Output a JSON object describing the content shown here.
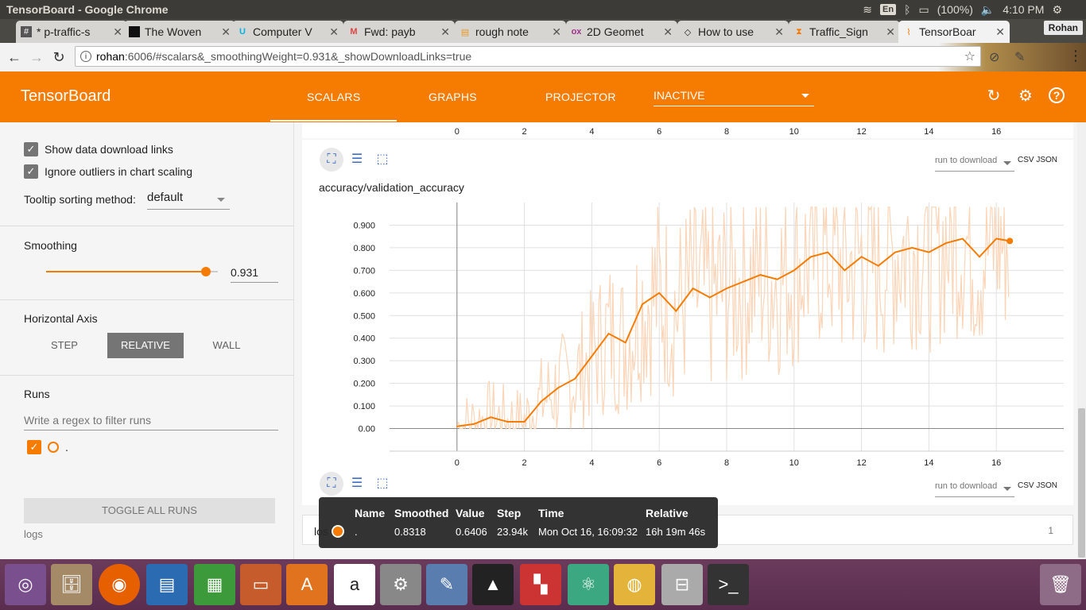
{
  "os": {
    "window_title": "TensorBoard - Google Chrome",
    "keyboard": "En",
    "battery": "(100%)",
    "clock": "4:10 PM",
    "user": "Rohan"
  },
  "browser": {
    "tabs": [
      {
        "label": "* p-traffic-s",
        "icon": "hash-icon"
      },
      {
        "label": "The Woven",
        "icon": "woven-icon"
      },
      {
        "label": "Computer V",
        "icon": "udacity-icon"
      },
      {
        "label": "Fwd: payb",
        "icon": "gmail-icon"
      },
      {
        "label": "rough note",
        "icon": "doc-icon"
      },
      {
        "label": "2D Geomet",
        "icon": "ox-icon"
      },
      {
        "label": "How to use",
        "icon": "diamond-icon"
      },
      {
        "label": "Traffic_Sign",
        "icon": "hourglass-icon"
      },
      {
        "label": "TensorBoar",
        "icon": "tensorboard-icon"
      }
    ],
    "profile": "Rohan",
    "url_host": "rohan",
    "url_rest": ":6006/#scalars&_smoothingWeight=0.931&_showDownloadLinks=true"
  },
  "header": {
    "brand": "TensorBoard",
    "tabs": [
      "SCALARS",
      "GRAPHS",
      "PROJECTOR"
    ],
    "inactive_label": "INACTIVE"
  },
  "sidebar": {
    "show_download": "Show data download links",
    "ignore_outliers": "Ignore outliers in chart scaling",
    "tooltip_sorting_label": "Tooltip sorting method:",
    "tooltip_sorting_value": "default",
    "smoothing_label": "Smoothing",
    "smoothing_value": "0.931",
    "smoothing_fraction": 0.931,
    "horizontal_axis_label": "Horizontal Axis",
    "axis_options": [
      "STEP",
      "RELATIVE",
      "WALL"
    ],
    "runs_label": "Runs",
    "regex_placeholder": "Write a regex to filter runs",
    "run_name": ".",
    "toggle_all": "TOGGLE ALL RUNS",
    "logs": "logs"
  },
  "main": {
    "download_placeholder": "run to download",
    "csv": "CSV",
    "json": "JSON",
    "prev_card_x_ticks": [
      "0",
      "2",
      "4",
      "6",
      "8",
      "10",
      "12",
      "14",
      "16"
    ],
    "next_card_title": "los",
    "next_card_count": "1"
  },
  "chart_data": {
    "type": "line",
    "title": "accuracy/validation_accuracy",
    "xlabel": "",
    "ylabel": "",
    "xlim": [
      -2,
      18
    ],
    "ylim": [
      -0.1,
      1.0
    ],
    "x_ticks": [
      0,
      2,
      4,
      6,
      8,
      10,
      12,
      14,
      16
    ],
    "x_tick_labels": [
      "0",
      "2",
      "4",
      "6",
      "8",
      "10",
      "12",
      "14",
      "16"
    ],
    "y_ticks": [
      0,
      0.1,
      0.2,
      0.3,
      0.4,
      0.5,
      0.6,
      0.7,
      0.8,
      0.9
    ],
    "y_tick_labels": [
      "0.00",
      "0.100",
      "0.200",
      "0.300",
      "0.400",
      "0.500",
      "0.600",
      "0.700",
      "0.800",
      "0.900"
    ],
    "grid": true,
    "series": [
      {
        "x": [
          0,
          0.5,
          1,
          1.5,
          2,
          2.5,
          3,
          3.5,
          4,
          4.5,
          5,
          5.5,
          6,
          6.5,
          7,
          7.5,
          8,
          8.5,
          9,
          9.5,
          10,
          10.5,
          11,
          11.5,
          12,
          12.5,
          13,
          13.5,
          14,
          14.5,
          15,
          15.5,
          16,
          16.4
        ],
        "values": [
          0.01,
          0.02,
          0.05,
          0.03,
          0.03,
          0.12,
          0.18,
          0.22,
          0.32,
          0.42,
          0.38,
          0.55,
          0.6,
          0.52,
          0.62,
          0.58,
          0.62,
          0.65,
          0.68,
          0.66,
          0.7,
          0.76,
          0.78,
          0.7,
          0.76,
          0.72,
          0.78,
          0.8,
          0.78,
          0.82,
          0.84,
          0.76,
          0.84,
          0.83
        ],
        "color": "#f57c00"
      }
    ],
    "raw_color": "#fcd5b8"
  },
  "tooltip": {
    "headers": [
      "Name",
      "Smoothed",
      "Value",
      "Step",
      "Time",
      "Relative"
    ],
    "row": [
      ".",
      "0.8318",
      "0.6406",
      "23.94k",
      "Mon Oct 16, 16:09:32",
      "16h 19m 46s"
    ]
  },
  "dock": {
    "icons": [
      "ubuntu-icon",
      "files-icon",
      "firefox-icon",
      "writer-icon",
      "calc-icon",
      "impress-icon",
      "software-center-icon",
      "amazon-icon",
      "settings-icon",
      "paint-icon",
      "inkscape-icon",
      "blocks-icon",
      "atom-icon",
      "chrome-icon",
      "drive-icon",
      "terminal-icon",
      "trash-icon"
    ]
  },
  "colors": {
    "accent": "#f57c00",
    "button_blue": "#3f6ec4"
  }
}
